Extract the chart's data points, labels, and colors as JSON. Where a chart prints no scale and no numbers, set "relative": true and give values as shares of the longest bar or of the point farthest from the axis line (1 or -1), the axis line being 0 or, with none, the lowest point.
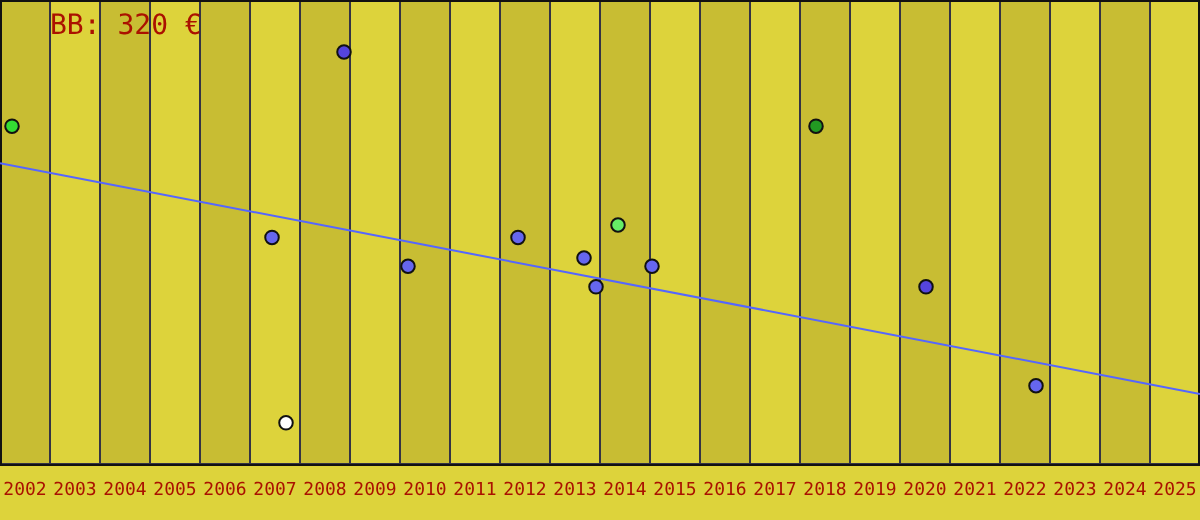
{
  "chart_data": {
    "type": "scatter",
    "relative": true,
    "marker": "circle",
    "annotations": [
      "BB: 320 €"
    ],
    "xlim": [
      2002,
      2026
    ],
    "xticks": [
      {
        "value": 2002.5,
        "label": "2002"
      },
      {
        "value": 2003.5,
        "label": "2003"
      },
      {
        "value": 2004.5,
        "label": "2004"
      },
      {
        "value": 2005.5,
        "label": "2005"
      },
      {
        "value": 2006.5,
        "label": "2006"
      },
      {
        "value": 2007.5,
        "label": "2007"
      },
      {
        "value": 2008.5,
        "label": "2008"
      },
      {
        "value": 2009.5,
        "label": "2009"
      },
      {
        "value": 2010.5,
        "label": "2010"
      },
      {
        "value": 2011.5,
        "label": "2011"
      },
      {
        "value": 2012.5,
        "label": "2012"
      },
      {
        "value": 2013.5,
        "label": "2013"
      },
      {
        "value": 2014.5,
        "label": "2014"
      },
      {
        "value": 2015.5,
        "label": "2015"
      },
      {
        "value": 2016.5,
        "label": "2016"
      },
      {
        "value": 2017.5,
        "label": "2017"
      },
      {
        "value": 2018.5,
        "label": "2018"
      },
      {
        "value": 2019.5,
        "label": "2019"
      },
      {
        "value": 2020.5,
        "label": "2020"
      },
      {
        "value": 2021.5,
        "label": "2021"
      },
      {
        "value": 2022.5,
        "label": "2022"
      },
      {
        "value": 2023.5,
        "label": "2023"
      },
      {
        "value": 2024.5,
        "label": "2024"
      },
      {
        "value": 2025.5,
        "label": "2025"
      }
    ],
    "bands": [
      {
        "axis": "x",
        "from": 2002,
        "to": 2003,
        "color": "#c8bd33"
      },
      {
        "axis": "x",
        "from": 2003,
        "to": 2004,
        "color": "#ddd33b"
      },
      {
        "axis": "x",
        "from": 2004,
        "to": 2005,
        "color": "#c8bd33"
      },
      {
        "axis": "x",
        "from": 2005,
        "to": 2006,
        "color": "#ddd33b"
      },
      {
        "axis": "x",
        "from": 2006,
        "to": 2007,
        "color": "#c8bd33"
      },
      {
        "axis": "x",
        "from": 2007,
        "to": 2008,
        "color": "#ddd33b"
      },
      {
        "axis": "x",
        "from": 2008,
        "to": 2009,
        "color": "#c8bd33"
      },
      {
        "axis": "x",
        "from": 2009,
        "to": 2010,
        "color": "#ddd33b"
      },
      {
        "axis": "x",
        "from": 2010,
        "to": 2011,
        "color": "#c8bd33"
      },
      {
        "axis": "x",
        "from": 2011,
        "to": 2012,
        "color": "#ddd33b"
      },
      {
        "axis": "x",
        "from": 2012,
        "to": 2013,
        "color": "#c8bd33"
      },
      {
        "axis": "x",
        "from": 2013,
        "to": 2014,
        "color": "#ddd33b"
      },
      {
        "axis": "x",
        "from": 2014,
        "to": 2015,
        "color": "#c8bd33"
      },
      {
        "axis": "x",
        "from": 2015,
        "to": 2016,
        "color": "#ddd33b"
      },
      {
        "axis": "x",
        "from": 2016,
        "to": 2017,
        "color": "#c8bd33"
      },
      {
        "axis": "x",
        "from": 2017,
        "to": 2018,
        "color": "#ddd33b"
      },
      {
        "axis": "x",
        "from": 2018,
        "to": 2019,
        "color": "#c8bd33"
      },
      {
        "axis": "x",
        "from": 2019,
        "to": 2020,
        "color": "#ddd33b"
      },
      {
        "axis": "x",
        "from": 2020,
        "to": 2021,
        "color": "#c8bd33"
      },
      {
        "axis": "x",
        "from": 2021,
        "to": 2022,
        "color": "#ddd33b"
      },
      {
        "axis": "x",
        "from": 2022,
        "to": 2023,
        "color": "#c8bd33"
      },
      {
        "axis": "x",
        "from": 2023,
        "to": 2024,
        "color": "#ddd33b"
      },
      {
        "axis": "x",
        "from": 2024,
        "to": 2025,
        "color": "#c8bd33"
      },
      {
        "axis": "x",
        "from": 2025,
        "to": 2026,
        "color": "#ddd33b"
      }
    ],
    "series": [
      {
        "x": [
          2002.24,
          2007.44,
          2007.72,
          2008.88,
          2010.16,
          2012.36,
          2013.68,
          2013.92,
          2014.36,
          2015.04,
          2018.32,
          2020.52,
          2022.72
        ],
        "values": [
          0.82,
          0.55,
          0.1,
          1,
          0.48,
          0.55,
          0.5,
          0.43,
          0.58,
          0.48,
          0.82,
          0.43,
          0.19
        ],
        "colors": [
          "#33dd33",
          "#6666ee",
          "#ffffff",
          "#5544dd",
          "#6666ee",
          "#6666ee",
          "#6666ee",
          "#6666ee",
          "#66ee66",
          "#6666ee",
          "#229922",
          "#5544dd",
          "#6666ee"
        ]
      },
      {
        "type": "line",
        "marker": "none",
        "color": "#5566ff",
        "x": [
          2002,
          2026
        ],
        "values": [
          0.73,
          0.17
        ]
      }
    ]
  }
}
